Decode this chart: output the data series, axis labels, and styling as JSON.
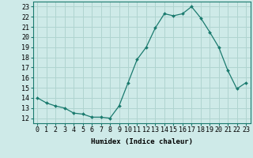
{
  "x": [
    0,
    1,
    2,
    3,
    4,
    5,
    6,
    7,
    8,
    9,
    10,
    11,
    12,
    13,
    14,
    15,
    16,
    17,
    18,
    19,
    20,
    21,
    22,
    23
  ],
  "y": [
    14.0,
    13.5,
    13.2,
    13.0,
    12.5,
    12.4,
    12.1,
    12.1,
    12.0,
    13.2,
    15.5,
    17.8,
    19.0,
    20.9,
    22.3,
    22.1,
    22.3,
    23.0,
    21.9,
    20.5,
    19.0,
    16.7,
    14.9,
    15.5
  ],
  "line_color": "#1a7a6e",
  "marker": "D",
  "marker_size": 2.0,
  "bg_color": "#ceeae8",
  "grid_color": "#b0d4d0",
  "xlabel": "Humidex (Indice chaleur)",
  "ylabel_ticks": [
    12,
    13,
    14,
    15,
    16,
    17,
    18,
    19,
    20,
    21,
    22,
    23
  ],
  "xlim": [
    -0.5,
    23.5
  ],
  "ylim": [
    11.5,
    23.5
  ],
  "label_fontsize": 6.5,
  "tick_fontsize": 6.0
}
